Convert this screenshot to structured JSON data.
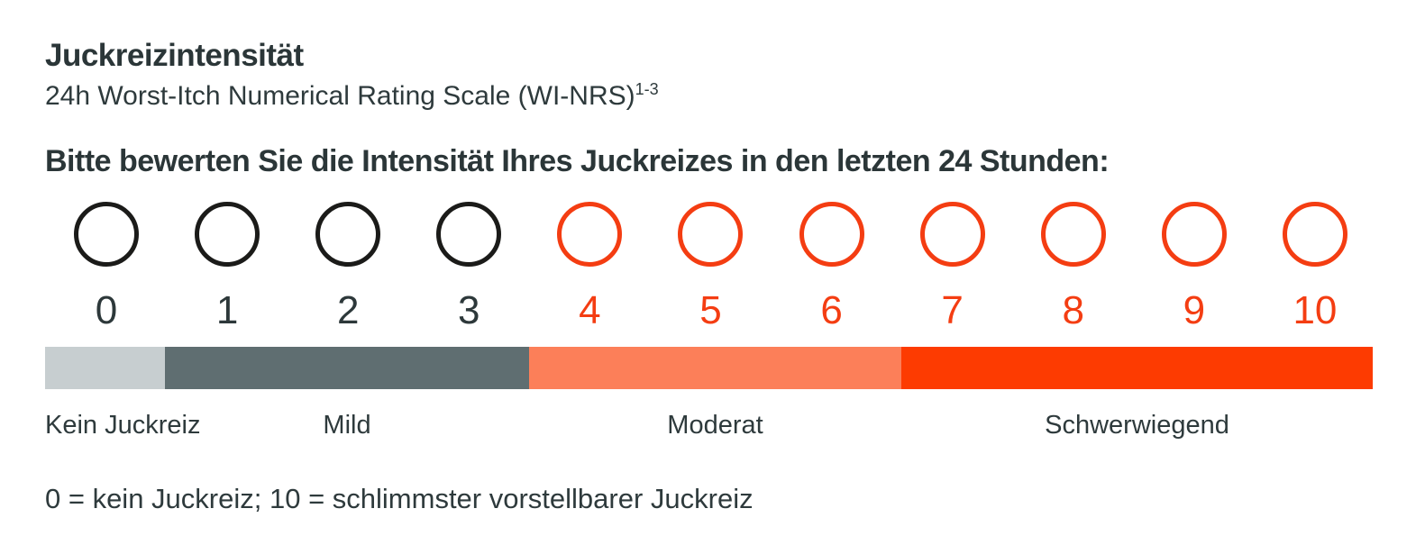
{
  "header": {
    "title": "Juckreizintensität",
    "subtitle": "24h Worst-Itch Numerical Rating Scale (WI-NRS)",
    "subtitle_superscript": "1-3"
  },
  "prompt": "Bitte bewerten Sie die Intensität Ihres Juckreizes in den letzten 24 Stunden:",
  "scale": {
    "min": 0,
    "max": 10,
    "numbers": [
      "0",
      "1",
      "2",
      "3",
      "4",
      "5",
      "6",
      "7",
      "8",
      "9",
      "10"
    ]
  },
  "severity_bar": {
    "segments": [
      {
        "label": "Kein Juckreiz",
        "color": "#c7ced0"
      },
      {
        "label": "Mild",
        "color": "#5f6e71"
      },
      {
        "label": "Moderat",
        "color": "#fc7f59"
      },
      {
        "label": "Schwerwiegend",
        "color": "#fd3b01"
      }
    ]
  },
  "footnote": "0 = kein Juckreiz; 10 = schlimmster vorstellbarer Juckreiz",
  "colors": {
    "text": "#2b3638",
    "circle_black": "#1b1b19",
    "accent_orange": "#f43d12",
    "bar_light_gray": "#c7ced0",
    "bar_slate_gray": "#5f6e71",
    "bar_salmon": "#fc7f59",
    "bar_red": "#fd3b01"
  }
}
